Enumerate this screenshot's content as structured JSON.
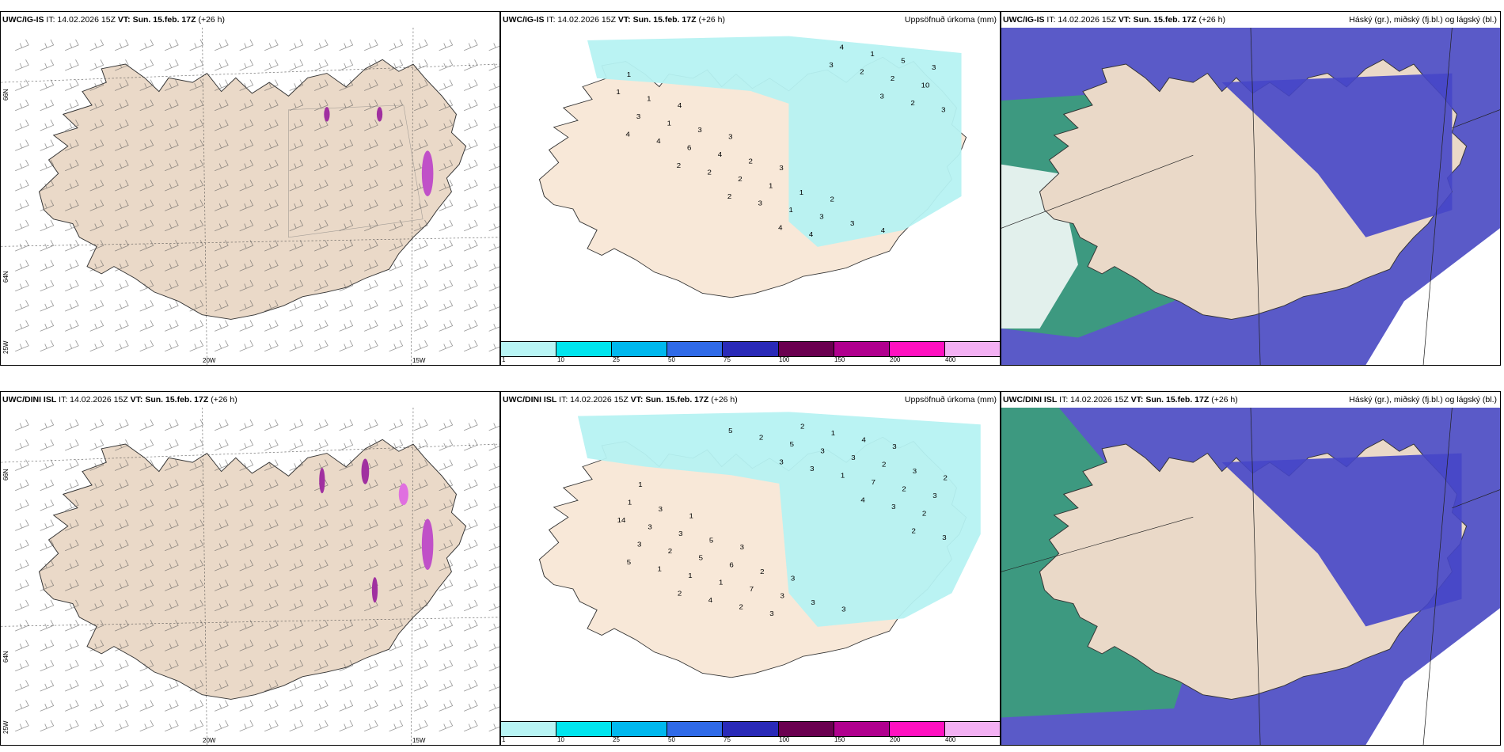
{
  "panels": {
    "p1": {
      "model": "UWC/IG-IS",
      "it": "IT: 14.02.2026 15Z",
      "vt": "VT: Sun. 15.feb. 17Z",
      "lead": "(+26 h)",
      "right": ""
    },
    "p2": {
      "model": "UWC/IG-IS",
      "it": "IT: 14.02.2026 15Z",
      "vt": "VT: Sun. 15.feb. 17Z",
      "lead": "(+26 h)",
      "right": "Uppsöfnuð úrkoma (mm)"
    },
    "p3": {
      "model": "UWC/IG-IS",
      "it": "IT: 14.02.2026 15Z",
      "vt": "VT: Sun. 15.feb. 17Z",
      "lead": "(+26 h)",
      "right": "Háský (gr.), miðský (fj.bl.) og lágský (bl.)"
    },
    "p4": {
      "model": "UWC/DINI ISL",
      "it": "IT: 14.02.2026 15Z",
      "vt": "VT: Sun. 15.feb. 17Z",
      "lead": "(+26 h)",
      "right": ""
    },
    "p5": {
      "model": "UWC/DINI ISL",
      "it": "IT: 14.02.2026 15Z",
      "vt": "VT: Sun. 15.feb. 17Z",
      "lead": "(+26 h)",
      "right": "Uppsöfnuð úrkoma (mm)"
    },
    "p6": {
      "model": "UWC/DINI ISL",
      "it": "IT: 14.02.2026 15Z",
      "vt": "VT: Sun. 15.feb. 17Z",
      "lead": "(+26 h)",
      "right": "Háský (gr.), miðský (fj.bl.) og lágský (bl.)"
    }
  },
  "axis_labels": {
    "lat66": "66N",
    "lat64": "64N",
    "lon25": "25W",
    "lon20": "20W",
    "lon15": "15W"
  },
  "colorbar": {
    "labels": [
      "1",
      "10",
      "25",
      "50",
      "75",
      "100",
      "150",
      "200",
      "400"
    ],
    "colors": [
      "#b8f5f5",
      "#00e5ee",
      "#00b8ee",
      "#2f6ae8",
      "#2a2ab8",
      "#6a0050",
      "#b0008e",
      "#ff10c0",
      "#f3b0f3"
    ]
  },
  "precip_values_top": [
    "1",
    "4",
    "3",
    "3",
    "2",
    "4",
    "3",
    "1",
    "3",
    "2",
    "1",
    "3",
    "5",
    "1",
    "1",
    "4",
    "1",
    "3",
    "1",
    "10",
    "3",
    "6",
    "2",
    "1",
    "4",
    "2",
    "3",
    "4",
    "2",
    "3",
    "4",
    "2",
    "2",
    "4",
    "2",
    "2",
    "4",
    "3",
    "3"
  ],
  "precip_values_bottom": [
    "1",
    "1",
    "3",
    "3",
    "3",
    "3",
    "2",
    "3",
    "5",
    "2",
    "3",
    "4",
    "3",
    "1",
    "3",
    "6",
    "3",
    "1",
    "2",
    "3",
    "3",
    "5",
    "7",
    "2",
    "3",
    "2",
    "14",
    "2",
    "1",
    "3",
    "3",
    "7",
    "2",
    "3",
    "1",
    "2",
    "5",
    "1",
    "3",
    "3",
    "1",
    "4",
    "2",
    "3",
    "4",
    "2",
    "5",
    "2",
    "5",
    "3"
  ],
  "colors": {
    "land": "#ead9c8",
    "precip": "#b6f2f2",
    "high_cloud": "#5a5ac8",
    "mid_cloud": "#2fa080",
    "low_cloud": "#3c3ccc"
  }
}
